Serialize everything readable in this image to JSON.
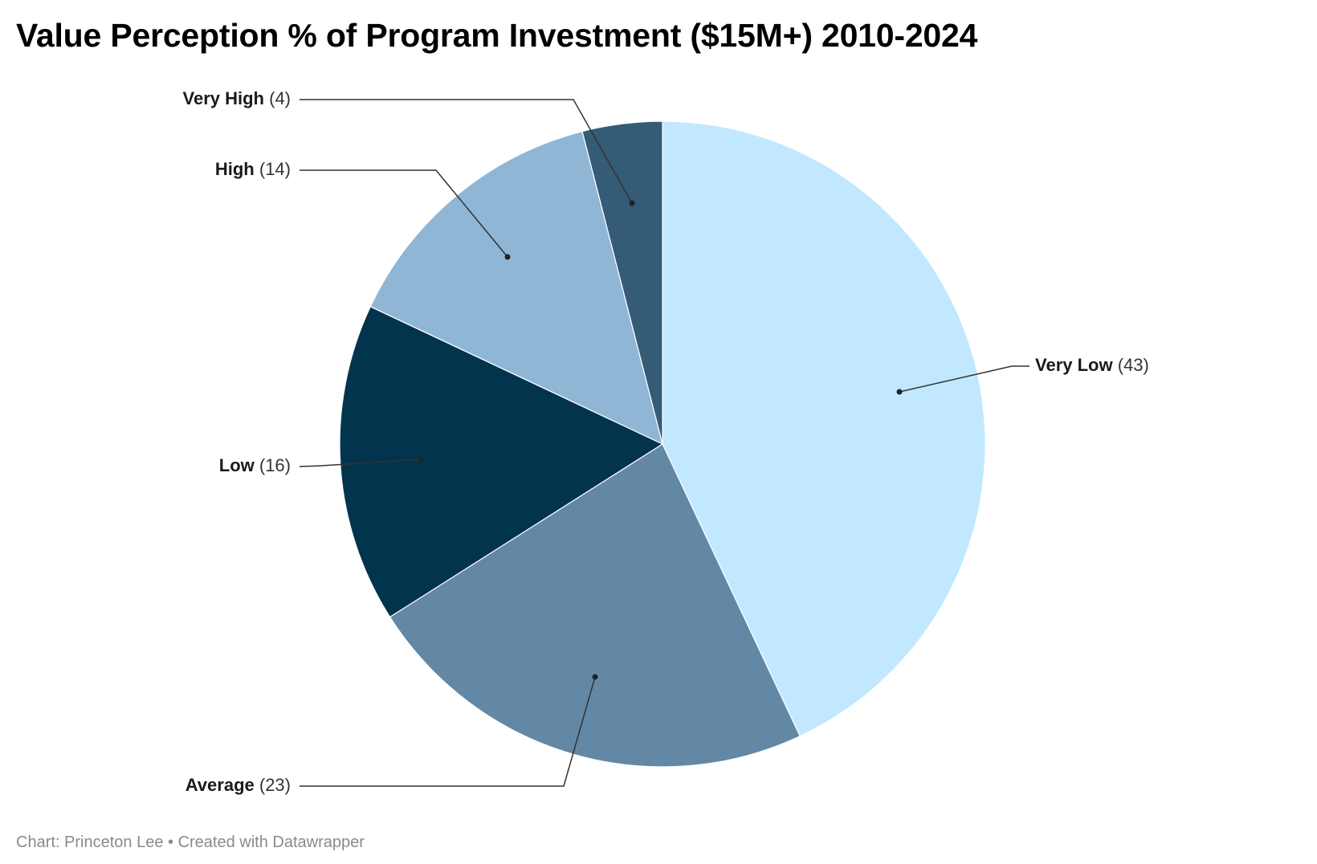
{
  "title": "Value Perception % of Program Investment ($15M+) 2010-2024",
  "footer": {
    "source": "Chart: Princeton Lee",
    "separator": "•",
    "credit": "Created with Datawrapper"
  },
  "chart_data": {
    "type": "pie",
    "title": "Value Perception % of Program Investment ($15M+) 2010-2024",
    "slices": [
      {
        "label": "Very Low",
        "value": 43,
        "display": "(43)",
        "color": "#c1e8fe"
      },
      {
        "label": "Average",
        "value": 23,
        "display": "(23)",
        "color": "#6388a5"
      },
      {
        "label": "Low",
        "value": 16,
        "display": "(16)",
        "color": "#02344e"
      },
      {
        "label": "High",
        "value": 14,
        "display": "(14)",
        "color": "#90b6d6"
      },
      {
        "label": "Very High",
        "value": 4,
        "display": "(4)",
        "color": "#345c77"
      }
    ],
    "start": "top",
    "direction": "clockwise",
    "legend": "none",
    "labels": "outside with leader lines"
  }
}
